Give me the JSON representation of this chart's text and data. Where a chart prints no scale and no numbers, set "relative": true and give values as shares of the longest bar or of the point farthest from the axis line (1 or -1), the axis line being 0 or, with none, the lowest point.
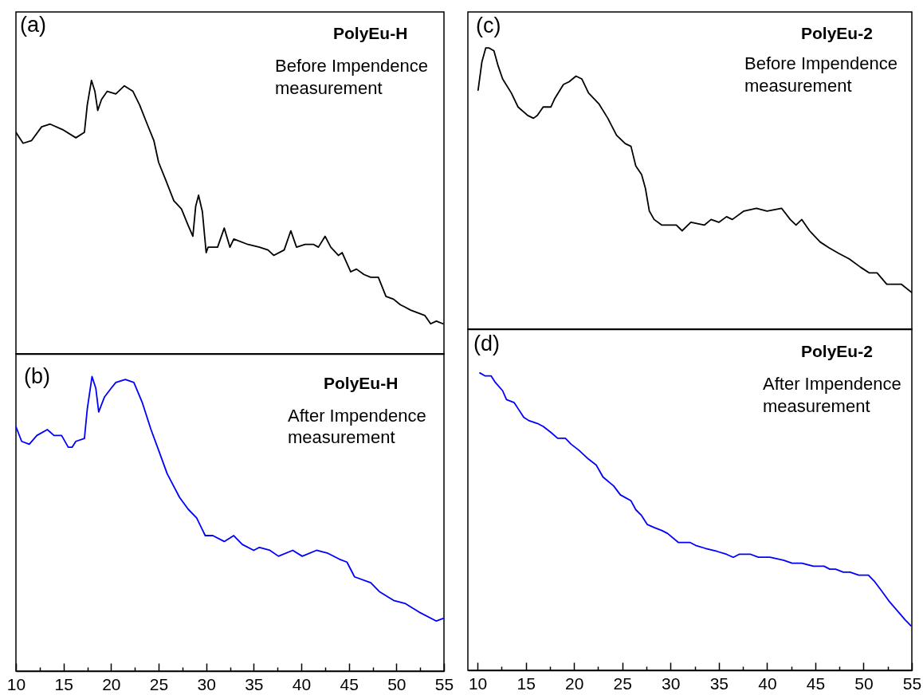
{
  "chart_data": [
    {
      "type": "line",
      "title": "PolyEu-H",
      "subtitle": "Before Impendence measurement",
      "annotations": [
        "(a)"
      ],
      "relative": true,
      "xlim": [
        10,
        55
      ],
      "tick_labels": false,
      "x": [
        10.0,
        10.75,
        11.65,
        12.7,
        13.6,
        14.9,
        16.3,
        17.2,
        17.5,
        17.94,
        18.3,
        18.6,
        19.0,
        19.6,
        20.5,
        21.4,
        22.3,
        23.0,
        23.8,
        24.5,
        25.0,
        25.7,
        26.6,
        27.4,
        28.1,
        28.6,
        28.9,
        29.2,
        29.6,
        30.0,
        30.2,
        31.2,
        31.9,
        32.5,
        32.9,
        34.4,
        35.6,
        36.5,
        37.1,
        38.2,
        38.9,
        39.5,
        40.4,
        41.3,
        41.8,
        42.5,
        43.1,
        43.9,
        44.3,
        45.2,
        45.8,
        46.6,
        47.3,
        48.1,
        48.9,
        49.7,
        50.4,
        51.5,
        53.0,
        53.6,
        54.2,
        54.9
      ],
      "series": [
        {
          "color": "#000000",
          "values": [
            0.81,
            0.77,
            0.78,
            0.83,
            0.84,
            0.82,
            0.79,
            0.81,
            0.91,
            1.0,
            0.96,
            0.89,
            0.93,
            0.96,
            0.95,
            0.98,
            0.96,
            0.91,
            0.84,
            0.78,
            0.7,
            0.64,
            0.56,
            0.53,
            0.47,
            0.43,
            0.54,
            0.58,
            0.52,
            0.37,
            0.39,
            0.39,
            0.46,
            0.39,
            0.42,
            0.4,
            0.39,
            0.38,
            0.36,
            0.38,
            0.45,
            0.39,
            0.4,
            0.4,
            0.39,
            0.43,
            0.39,
            0.36,
            0.37,
            0.3,
            0.31,
            0.29,
            0.28,
            0.28,
            0.21,
            0.2,
            0.18,
            0.16,
            0.14,
            0.11,
            0.12,
            0.11
          ]
        }
      ]
    },
    {
      "type": "line",
      "title": "PolyEu-H",
      "subtitle": "After Impendence measurement",
      "annotations": [
        "(b)"
      ],
      "relative": true,
      "xlim": [
        10,
        55
      ],
      "tick_labels": "x",
      "xticks": [
        10,
        {
          "value": 12.5,
          "label": null
        },
        15,
        {
          "value": 17.5,
          "label": null
        },
        20,
        {
          "value": 22.5,
          "label": null
        },
        25,
        {
          "value": 27.5,
          "label": null
        },
        30,
        {
          "value": 32.5,
          "label": null
        },
        35,
        {
          "value": 37.5,
          "label": null
        },
        40,
        {
          "value": 42.5,
          "label": null
        },
        45,
        {
          "value": 47.5,
          "label": null
        },
        50,
        {
          "value": 52.5,
          "label": null
        },
        55
      ],
      "x": [
        10.0,
        10.6,
        11.4,
        12.2,
        13.3,
        14.0,
        14.8,
        15.5,
        15.9,
        16.3,
        17.2,
        17.5,
        18.0,
        18.4,
        18.7,
        19.3,
        20.0,
        20.5,
        21.5,
        22.4,
        23.3,
        24.2,
        25.0,
        25.9,
        27.2,
        28.1,
        29.0,
        29.9,
        30.7,
        31.9,
        32.9,
        33.8,
        35.0,
        35.6,
        36.7,
        37.6,
        39.1,
        40.1,
        41.6,
        42.8,
        44.0,
        44.8,
        45.6,
        47.3,
        48.2,
        49.7,
        50.9,
        52.4,
        54.2,
        55.0
      ],
      "series": [
        {
          "color": "#0000ff",
          "values": [
            0.83,
            0.78,
            0.77,
            0.8,
            0.82,
            0.8,
            0.8,
            0.76,
            0.76,
            0.78,
            0.79,
            0.89,
            1.0,
            0.96,
            0.88,
            0.93,
            0.96,
            0.98,
            0.99,
            0.98,
            0.91,
            0.82,
            0.75,
            0.67,
            0.59,
            0.55,
            0.52,
            0.46,
            0.46,
            0.44,
            0.46,
            0.43,
            0.41,
            0.42,
            0.41,
            0.39,
            0.41,
            0.39,
            0.41,
            0.4,
            0.38,
            0.37,
            0.32,
            0.3,
            0.27,
            0.24,
            0.23,
            0.2,
            0.17,
            0.18
          ]
        }
      ]
    },
    {
      "type": "line",
      "title": "PolyEu-2",
      "subtitle": "Before Impendence measurement",
      "annotations": [
        "(c)"
      ],
      "relative": true,
      "xlim": [
        9,
        55
      ],
      "tick_labels": false,
      "x": [
        10.06,
        10.45,
        10.85,
        11.2,
        11.7,
        12.1,
        12.6,
        13.5,
        14.2,
        15.2,
        15.8,
        16.2,
        16.8,
        17.6,
        18.0,
        18.9,
        19.5,
        20.2,
        20.8,
        21.5,
        22.6,
        23.5,
        24.4,
        25.3,
        25.9,
        26.4,
        27.0,
        27.4,
        27.8,
        28.3,
        29.1,
        30.6,
        31.2,
        32.1,
        33.5,
        34.2,
        35.0,
        35.8,
        36.4,
        37.6,
        38.9,
        40.0,
        41.5,
        42.4,
        43.0,
        43.6,
        44.4,
        45.5,
        46.4,
        47.4,
        48.5,
        49.7,
        50.6,
        51.4,
        52.4,
        53.9,
        55.0
      ],
      "series": [
        {
          "color": "#000000",
          "values": [
            0.85,
            0.95,
            1.0,
            1.0,
            0.99,
            0.94,
            0.89,
            0.84,
            0.79,
            0.76,
            0.75,
            0.76,
            0.79,
            0.79,
            0.82,
            0.87,
            0.88,
            0.9,
            0.89,
            0.84,
            0.8,
            0.75,
            0.69,
            0.66,
            0.65,
            0.58,
            0.55,
            0.5,
            0.42,
            0.39,
            0.37,
            0.37,
            0.35,
            0.38,
            0.37,
            0.39,
            0.38,
            0.4,
            0.39,
            0.42,
            0.43,
            0.42,
            0.43,
            0.39,
            0.37,
            0.39,
            0.35,
            0.31,
            0.29,
            0.27,
            0.25,
            0.22,
            0.2,
            0.2,
            0.16,
            0.16,
            0.13
          ]
        }
      ]
    },
    {
      "type": "line",
      "title": "PolyEu-2",
      "subtitle": "After Impendence measurement",
      "annotations": [
        "(d)"
      ],
      "relative": true,
      "xlim": [
        9,
        55
      ],
      "tick_labels": "x",
      "xticks": [
        10,
        {
          "value": 12.5,
          "label": null
        },
        15,
        {
          "value": 17.5,
          "label": null
        },
        20,
        {
          "value": 22.5,
          "label": null
        },
        25,
        {
          "value": 27.5,
          "label": null
        },
        30,
        {
          "value": 32.5,
          "label": null
        },
        35,
        {
          "value": 37.5,
          "label": null
        },
        40,
        {
          "value": 42.5,
          "label": null
        },
        45,
        {
          "value": 47.5,
          "label": null
        },
        50,
        {
          "value": 52.5,
          "label": null
        },
        55
      ],
      "x": [
        10.24,
        10.76,
        11.4,
        11.8,
        12.6,
        13.0,
        13.8,
        14.2,
        14.8,
        15.3,
        16.2,
        16.8,
        17.6,
        18.3,
        19.1,
        19.7,
        20.5,
        21.5,
        22.3,
        23.0,
        24.1,
        24.8,
        25.9,
        26.4,
        27.0,
        27.6,
        28.3,
        29.1,
        29.7,
        30.8,
        32.0,
        32.6,
        33.6,
        34.8,
        35.8,
        36.5,
        37.1,
        38.3,
        39.1,
        40.3,
        41.7,
        42.6,
        43.6,
        44.8,
        45.9,
        46.5,
        47.1,
        47.9,
        48.6,
        49.5,
        50.5,
        51.1,
        51.8,
        52.7,
        53.5,
        54.3,
        54.9
      ],
      "series": [
        {
          "color": "#0000ff",
          "values": [
            1.0,
            0.99,
            0.99,
            0.97,
            0.94,
            0.91,
            0.9,
            0.88,
            0.85,
            0.84,
            0.83,
            0.82,
            0.8,
            0.78,
            0.78,
            0.76,
            0.74,
            0.71,
            0.69,
            0.65,
            0.62,
            0.59,
            0.57,
            0.54,
            0.52,
            0.49,
            0.48,
            0.47,
            0.46,
            0.43,
            0.43,
            0.42,
            0.41,
            0.4,
            0.39,
            0.38,
            0.39,
            0.39,
            0.38,
            0.38,
            0.37,
            0.36,
            0.36,
            0.35,
            0.35,
            0.34,
            0.34,
            0.33,
            0.33,
            0.32,
            0.32,
            0.3,
            0.27,
            0.23,
            0.2,
            0.17,
            0.15
          ]
        }
      ]
    }
  ]
}
